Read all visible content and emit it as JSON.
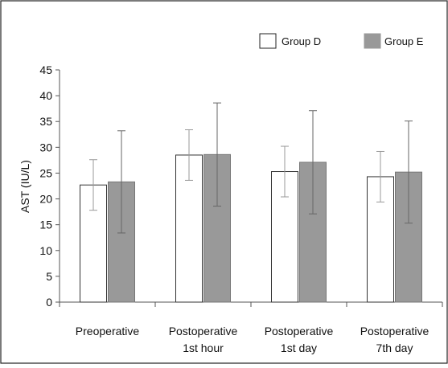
{
  "chart_data": {
    "type": "bar",
    "title": "",
    "xlabel": "",
    "ylabel": "AST (IU/L)",
    "ylim": [
      0,
      45
    ],
    "yticks": [
      0,
      5,
      10,
      15,
      20,
      25,
      30,
      35,
      40,
      45
    ],
    "categories": [
      [
        "Preoperative"
      ],
      [
        "Postoperative",
        "1st hour"
      ],
      [
        "Postoperative",
        "1st day"
      ],
      [
        "Postoperative",
        "7th day"
      ]
    ],
    "series": [
      {
        "name": "Group D",
        "color": "#ffffff",
        "values": [
          22.7,
          28.5,
          25.3,
          24.3
        ],
        "error": [
          4.9,
          4.9,
          4.9,
          4.9
        ]
      },
      {
        "name": "Group E",
        "color": "#999999",
        "values": [
          23.3,
          28.6,
          27.1,
          25.2
        ],
        "error": [
          9.9,
          10.0,
          10.0,
          9.9
        ]
      }
    ],
    "legend_position": "top-right",
    "grid": false
  }
}
